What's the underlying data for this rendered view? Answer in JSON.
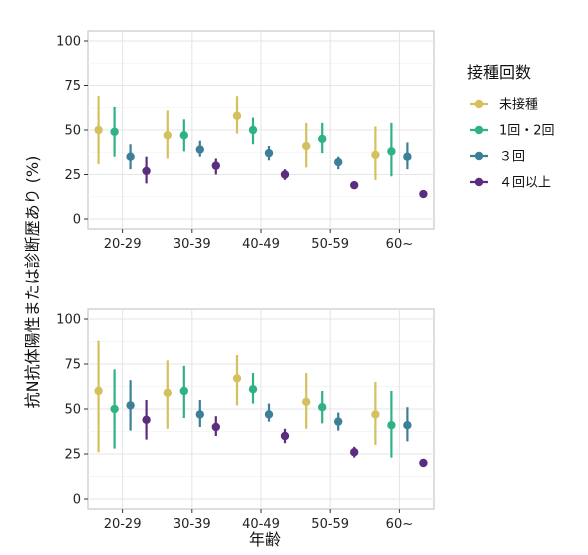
{
  "chart_data": [
    {
      "type": "pointrange",
      "panel": "top",
      "categories": [
        "20-29",
        "30-39",
        "40-49",
        "50-59",
        "60~"
      ],
      "ylim": [
        0,
        100
      ],
      "yticks": [
        0,
        25,
        50,
        75,
        100
      ],
      "grid": true,
      "series": [
        {
          "name": "未接種",
          "values": [
            50,
            47,
            58,
            41,
            36
          ],
          "lower": [
            31,
            34,
            48,
            29,
            22
          ],
          "upper": [
            69,
            61,
            69,
            54,
            52
          ]
        },
        {
          "name": "1回・2回",
          "values": [
            49,
            47,
            50,
            45,
            38
          ],
          "lower": [
            35,
            38,
            42,
            37,
            24
          ],
          "upper": [
            63,
            56,
            57,
            54,
            54
          ]
        },
        {
          "name": "３回",
          "values": [
            35,
            39,
            37,
            32,
            35
          ],
          "lower": [
            28,
            35,
            33,
            28,
            28
          ],
          "upper": [
            42,
            44,
            41,
            35,
            43
          ]
        },
        {
          "name": "４回以上",
          "values": [
            27,
            30,
            25,
            19,
            14
          ],
          "lower": [
            20,
            25,
            22,
            17,
            13
          ],
          "upper": [
            35,
            34,
            28,
            21,
            15
          ]
        }
      ]
    },
    {
      "type": "pointrange",
      "panel": "bottom",
      "categories": [
        "20-29",
        "30-39",
        "40-49",
        "50-59",
        "60~"
      ],
      "ylim": [
        0,
        100
      ],
      "yticks": [
        0,
        25,
        50,
        75,
        100
      ],
      "grid": true,
      "series": [
        {
          "name": "未接種",
          "values": [
            60,
            59,
            67,
            54,
            47
          ],
          "lower": [
            26,
            39,
            52,
            39,
            30
          ],
          "upper": [
            88,
            77,
            80,
            70,
            65
          ]
        },
        {
          "name": "1回・2回",
          "values": [
            50,
            60,
            61,
            51,
            41
          ],
          "lower": [
            28,
            45,
            53,
            42,
            23
          ],
          "upper": [
            72,
            74,
            70,
            60,
            60
          ]
        },
        {
          "name": "３回",
          "values": [
            52,
            47,
            47,
            43,
            41
          ],
          "lower": [
            38,
            40,
            43,
            38,
            32
          ],
          "upper": [
            66,
            55,
            53,
            48,
            51
          ]
        },
        {
          "name": "４回以上",
          "values": [
            44,
            40,
            35,
            26,
            20
          ],
          "lower": [
            33,
            35,
            31,
            23,
            18
          ],
          "upper": [
            55,
            46,
            39,
            29,
            21
          ]
        }
      ]
    }
  ],
  "shared": {
    "ylabel": "抗N抗体陽性または診断歴あり (%)",
    "xlabel": "年齢",
    "legend_title": "接種回数",
    "legend_placement": "right",
    "series_colors": [
      "#d4c15e",
      "#2fb383",
      "#3d7f98",
      "#5b2d7e"
    ]
  }
}
